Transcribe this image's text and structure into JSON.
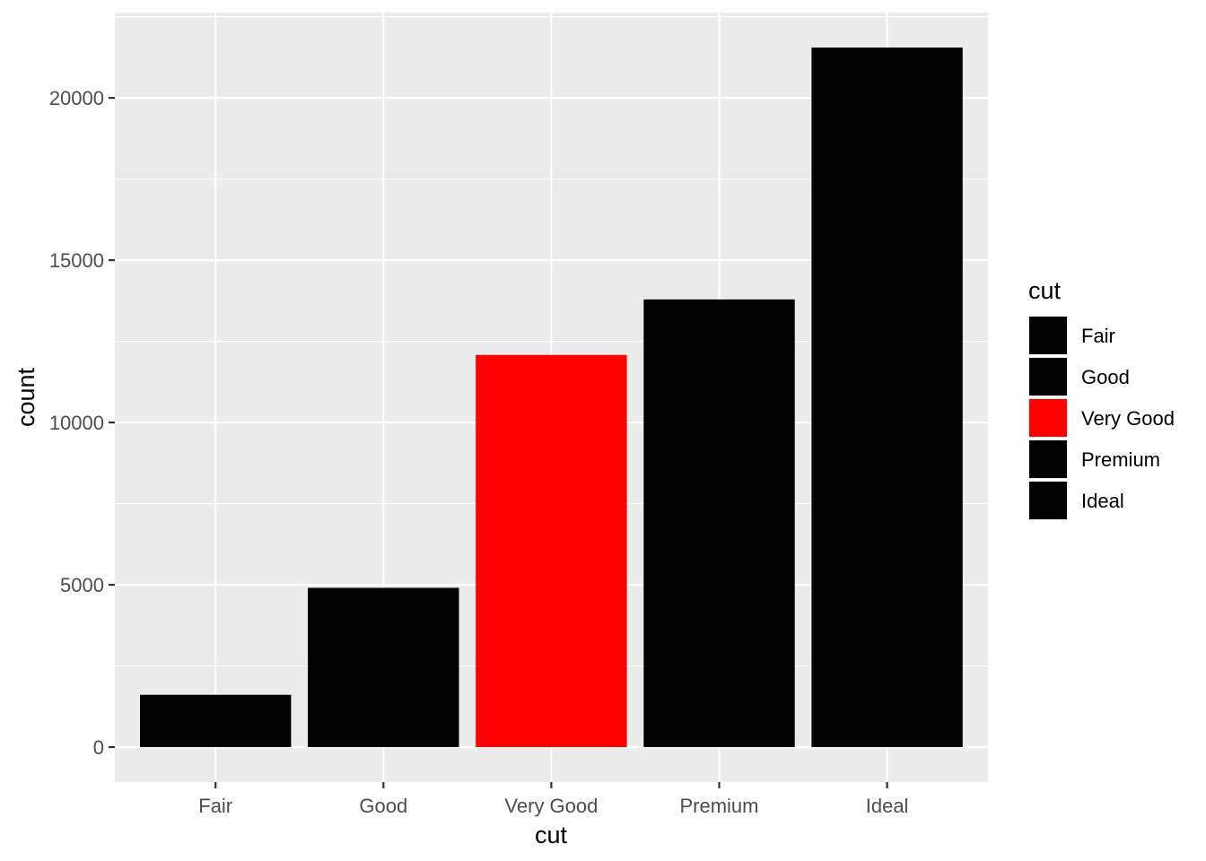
{
  "chart_data": {
    "type": "bar",
    "categories": [
      "Fair",
      "Good",
      "Very Good",
      "Premium",
      "Ideal"
    ],
    "values": [
      1610,
      4906,
      12082,
      13791,
      21551
    ],
    "colors": [
      "#000000",
      "#000000",
      "#ff0000",
      "#000000",
      "#000000"
    ],
    "xlabel": "cut",
    "ylabel": "count",
    "yticks": [
      0,
      5000,
      10000,
      15000,
      20000
    ],
    "ytick_labels": [
      "0",
      "5000",
      "10000",
      "15000",
      "20000"
    ],
    "ylim": [
      -1078,
      22629
    ],
    "panel_background": "#ebebeb",
    "grid": true,
    "legend": {
      "title": "cut",
      "position": "right",
      "items": [
        {
          "label": "Fair",
          "color": "#000000"
        },
        {
          "label": "Good",
          "color": "#000000"
        },
        {
          "label": "Very Good",
          "color": "#ff0000"
        },
        {
          "label": "Premium",
          "color": "#000000"
        },
        {
          "label": "Ideal",
          "color": "#000000"
        }
      ]
    }
  }
}
